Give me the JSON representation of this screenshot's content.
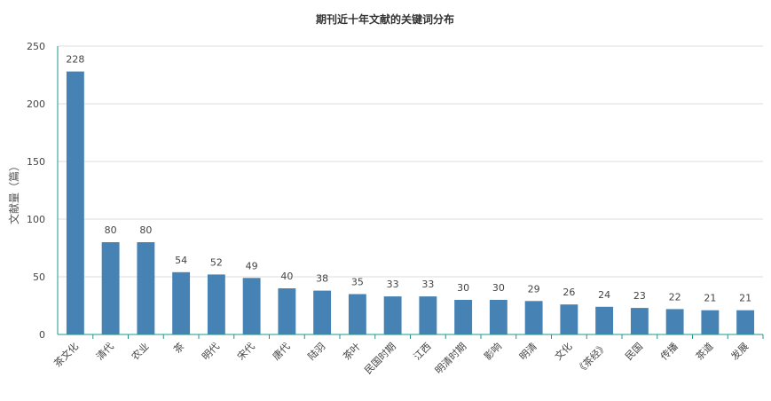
{
  "chart_data": {
    "type": "bar",
    "title": "期刊近十年文献的关键词分布",
    "xlabel": "",
    "ylabel": "文献量（篇）",
    "ylim": [
      0,
      250
    ],
    "yticks": [
      0,
      50,
      100,
      150,
      200,
      250
    ],
    "grid": true,
    "legend": "none",
    "categories": [
      "茶文化",
      "清代",
      "农业",
      "茶",
      "明代",
      "宋代",
      "唐代",
      "陆羽",
      "茶叶",
      "民国时期",
      "江西",
      "明清时期",
      "影响",
      "明清",
      "文化",
      "《茶经》",
      "民国",
      "传播",
      "茶道",
      "发展"
    ],
    "values": [
      228,
      80,
      80,
      54,
      52,
      49,
      40,
      38,
      35,
      33,
      33,
      30,
      30,
      29,
      26,
      24,
      23,
      22,
      21,
      21
    ],
    "colors": {
      "bar": "#4682b4",
      "axis": "#1a9a8a",
      "grid": "#dddddd"
    }
  }
}
